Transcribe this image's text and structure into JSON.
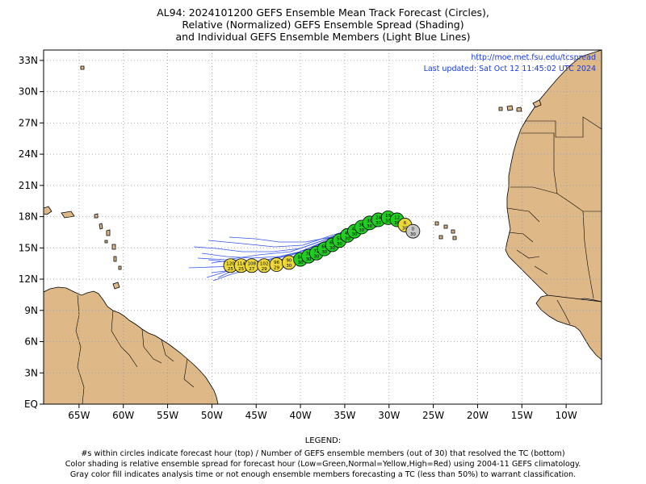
{
  "title": {
    "line1": "AL94: 2024101200 GEFS Ensemble Mean Track Forecast (Circles),",
    "line2": "Relative (Normalized) GEFS Ensemble Spread (Shading)",
    "line3": "and Individual GEFS Ensemble Members (Light Blue Lines)"
  },
  "info": {
    "url": "http://moe.met.fsu.edu/tcspread",
    "updated": "Last updated: Sat Oct 12 11:45:02 UTC 2024"
  },
  "axes": {
    "lat_labels": [
      "33N",
      "30N",
      "27N",
      "24N",
      "21N",
      "18N",
      "15N",
      "12N",
      "9N",
      "6N",
      "3N",
      "EQ"
    ],
    "lon_labels": [
      "65W",
      "60W",
      "55W",
      "50W",
      "45W",
      "40W",
      "35W",
      "30W",
      "25W",
      "20W",
      "15W",
      "10W"
    ],
    "lat_values": [
      33,
      30,
      27,
      24,
      21,
      18,
      15,
      12,
      9,
      6,
      3,
      0
    ],
    "lon_values": [
      -65,
      -60,
      -55,
      -50,
      -45,
      -40,
      -35,
      -30,
      -25,
      -20,
      -15,
      -10
    ],
    "lon_range": [
      -69,
      -6
    ],
    "lat_range": [
      0,
      34
    ]
  },
  "colors": {
    "land": "#deb887",
    "ocean": "#ffffff",
    "member_line": "#3355ee",
    "green": "#22cc22",
    "yellow": "#ecd73a",
    "gray": "#c8c8c8"
  },
  "track": [
    {
      "hour": "0",
      "members": "30",
      "lon": -27.3,
      "lat": 16.6,
      "color": "gray"
    },
    {
      "hour": "6",
      "members": "30",
      "lon": -28.2,
      "lat": 17.2,
      "color": "yellow"
    },
    {
      "hour": "12",
      "members": "30",
      "lon": -29.1,
      "lat": 17.7,
      "color": "green"
    },
    {
      "hour": "18",
      "members": "30",
      "lon": -30.1,
      "lat": 17.9,
      "color": "green"
    },
    {
      "hour": "24",
      "members": "30",
      "lon": -31.2,
      "lat": 17.7,
      "color": "green"
    },
    {
      "hour": "30",
      "members": "30",
      "lon": -32.2,
      "lat": 17.4,
      "color": "green"
    },
    {
      "hour": "36",
      "members": "30",
      "lon": -33.1,
      "lat": 17.0,
      "color": "green"
    },
    {
      "hour": "42",
      "members": "30",
      "lon": -33.9,
      "lat": 16.6,
      "color": "green"
    },
    {
      "hour": "48",
      "members": "30",
      "lon": -34.7,
      "lat": 16.2,
      "color": "green"
    },
    {
      "hour": "54",
      "members": "30",
      "lon": -35.6,
      "lat": 15.7,
      "color": "green"
    },
    {
      "hour": "60",
      "members": "30",
      "lon": -36.4,
      "lat": 15.3,
      "color": "green"
    },
    {
      "hour": "66",
      "members": "30",
      "lon": -37.3,
      "lat": 14.9,
      "color": "green"
    },
    {
      "hour": "72",
      "members": "30",
      "lon": -38.2,
      "lat": 14.5,
      "color": "green"
    },
    {
      "hour": "78",
      "members": "30",
      "lon": -39.1,
      "lat": 14.2,
      "color": "green"
    },
    {
      "hour": "84",
      "members": "30",
      "lon": -40.0,
      "lat": 13.9,
      "color": "green"
    },
    {
      "hour": "90",
      "members": "30",
      "lon": -41.3,
      "lat": 13.6,
      "color": "yellow"
    },
    {
      "hour": "96",
      "members": "29",
      "lon": -42.7,
      "lat": 13.4,
      "color": "yellow"
    },
    {
      "hour": "102",
      "members": "29",
      "lon": -44.1,
      "lat": 13.3,
      "color": "yellow"
    },
    {
      "hour": "108",
      "members": "27",
      "lon": -45.5,
      "lat": 13.3,
      "color": "yellow"
    },
    {
      "hour": "114",
      "members": "25",
      "lon": -46.7,
      "lat": 13.3,
      "color": "yellow"
    },
    {
      "hour": "120",
      "members": "25",
      "lon": -47.9,
      "lat": 13.3,
      "color": "yellow"
    }
  ],
  "legend": {
    "heading": "LEGEND:",
    "line1": "#s within circles indicate forecast hour (top) / Number of GEFS ensemble members (out of 30) that resolved the TC (bottom)",
    "line2": "Color shading is relative ensemble spread for forecast hour (Low=Green,Normal=Yellow,High=Red) using 2004-11 GEFS climatology.",
    "line3": "Gray color fill indicates analysis time or not enough ensemble members forecasting a TC (less than 50%) to warrant classification."
  }
}
